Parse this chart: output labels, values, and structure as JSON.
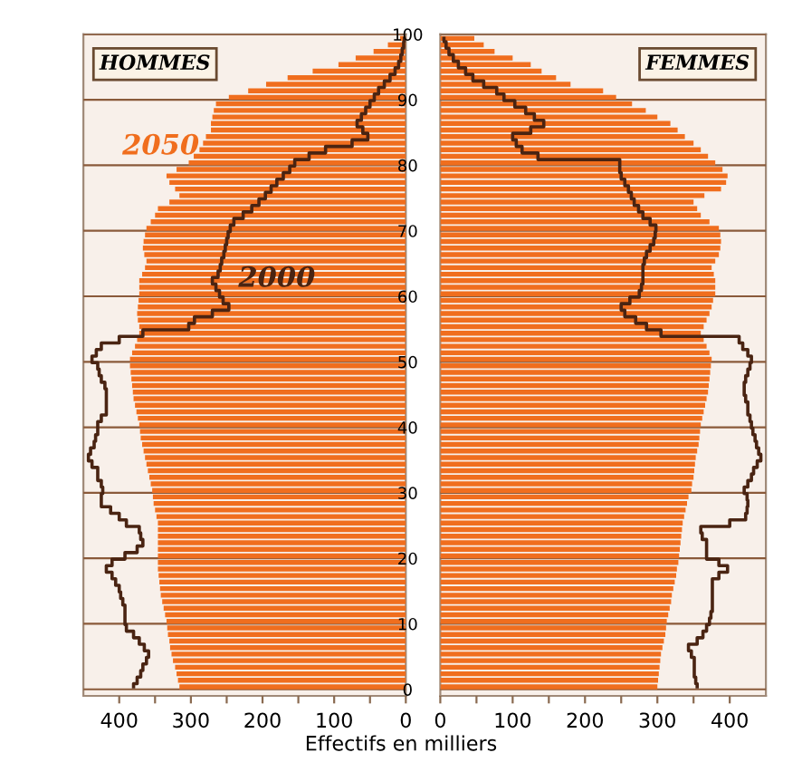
{
  "chart_data": [
    {
      "type": "bar",
      "orientation": "horizontal",
      "title": "HOMMES",
      "xlabel": "Effectifs en milliers",
      "tick_labels": "x",
      "grid": "y",
      "legend": false,
      "x": [
        0,
        1,
        2,
        3,
        4,
        5,
        6,
        7,
        8,
        9,
        10,
        11,
        12,
        13,
        14,
        15,
        16,
        17,
        18,
        19,
        20,
        21,
        22,
        23,
        24,
        25,
        26,
        27,
        28,
        29,
        30,
        31,
        32,
        33,
        34,
        35,
        36,
        37,
        38,
        39,
        40,
        41,
        42,
        43,
        44,
        45,
        46,
        47,
        48,
        49,
        50,
        51,
        52,
        53,
        54,
        55,
        56,
        57,
        58,
        59,
        60,
        61,
        62,
        63,
        64,
        65,
        66,
        67,
        68,
        69,
        70,
        71,
        72,
        73,
        74,
        75,
        76,
        77,
        78,
        79,
        80,
        81,
        82,
        83,
        84,
        85,
        86,
        87,
        88,
        89,
        90,
        91,
        92,
        93,
        94,
        95,
        96,
        97,
        98,
        99
      ],
      "xlim": [
        450,
        0
      ],
      "xticks": [
        400,
        {
          "value": 350,
          "label": null
        },
        300,
        {
          "value": 250,
          "label": null
        },
        200,
        {
          "value": 150,
          "label": null
        },
        100,
        {
          "value": 50,
          "label": null
        },
        0
      ],
      "ylim": [
        -1,
        100
      ],
      "yticks": [
        0,
        10,
        20,
        30,
        40,
        50,
        60,
        70,
        80,
        90,
        100
      ],
      "series": [
        {
          "name": "2000",
          "type": "step",
          "color": "#4a2412",
          "values": [
            380,
            375,
            370,
            367,
            362,
            359,
            365,
            372,
            380,
            390,
            392,
            392,
            392,
            395,
            398,
            400,
            405,
            410,
            418,
            410,
            392,
            375,
            367,
            370,
            372,
            390,
            400,
            412,
            425,
            425,
            423,
            425,
            430,
            430,
            438,
            443,
            440,
            435,
            433,
            430,
            430,
            425,
            418,
            418,
            418,
            418,
            420,
            425,
            428,
            430,
            438,
            432,
            425,
            400,
            367,
            303,
            295,
            270,
            247,
            255,
            260,
            265,
            270,
            262,
            259,
            257,
            254,
            252,
            250,
            248,
            245,
            240,
            227,
            215,
            205,
            196,
            188,
            180,
            171,
            162,
            155,
            135,
            112,
            75,
            53,
            60,
            68,
            62,
            56,
            50,
            44,
            38,
            30,
            22,
            15,
            10,
            7,
            5,
            3,
            2
          ]
        },
        {
          "name": "2050",
          "color": "#f06e1e",
          "values": [
            316,
            318,
            320,
            322,
            325,
            327,
            329,
            330,
            332,
            333,
            334,
            336,
            338,
            340,
            342,
            343,
            344,
            345,
            346,
            346,
            346,
            346,
            346,
            346,
            346,
            346,
            348,
            350,
            352,
            353,
            354,
            356,
            358,
            360,
            362,
            364,
            366,
            368,
            370,
            371,
            372,
            374,
            376,
            378,
            380,
            381,
            382,
            383,
            384,
            385,
            385,
            382,
            378,
            375,
            372,
            372,
            374,
            375,
            374,
            373,
            372,
            372,
            372,
            368,
            364,
            362,
            365,
            367,
            366,
            364,
            362,
            356,
            350,
            346,
            330,
            316,
            322,
            330,
            334,
            320,
            303,
            296,
            288,
            283,
            279,
            272,
            272,
            270,
            268,
            265,
            247,
            220,
            195,
            165,
            130,
            94,
            70,
            45,
            25,
            8
          ]
        }
      ]
    },
    {
      "type": "bar",
      "orientation": "horizontal",
      "title": "FEMMES",
      "grid": "y",
      "legend": false,
      "x": [
        0,
        1,
        2,
        3,
        4,
        5,
        6,
        7,
        8,
        9,
        10,
        11,
        12,
        13,
        14,
        15,
        16,
        17,
        18,
        19,
        20,
        21,
        22,
        23,
        24,
        25,
        26,
        27,
        28,
        29,
        30,
        31,
        32,
        33,
        34,
        35,
        36,
        37,
        38,
        39,
        40,
        41,
        42,
        43,
        44,
        45,
        46,
        47,
        48,
        49,
        50,
        51,
        52,
        53,
        54,
        55,
        56,
        57,
        58,
        59,
        60,
        61,
        62,
        63,
        64,
        65,
        66,
        67,
        68,
        69,
        70,
        71,
        72,
        73,
        74,
        75,
        76,
        77,
        78,
        79,
        80,
        81,
        82,
        83,
        84,
        85,
        86,
        87,
        88,
        89,
        90,
        91,
        92,
        93,
        94,
        95,
        96,
        97,
        98,
        99
      ],
      "xlim": [
        0,
        450
      ],
      "xticks": [
        0,
        {
          "value": 50,
          "label": null
        },
        100,
        {
          "value": 150,
          "label": null
        },
        200,
        {
          "value": 250,
          "label": null
        },
        300,
        {
          "value": 350,
          "label": null
        },
        400
      ],
      "ylim": [
        -1,
        100
      ],
      "yticks": [
        0,
        10,
        20,
        30,
        40,
        50,
        60,
        70,
        80,
        90,
        100
      ],
      "series": [
        {
          "type": "step",
          "color": "#4a2412",
          "values": [
            355,
            353,
            351,
            351,
            351,
            347,
            343,
            355,
            363,
            368,
            372,
            374,
            376,
            376,
            376,
            376,
            376,
            385,
            397,
            385,
            368,
            368,
            368,
            362,
            360,
            400,
            422,
            424,
            425,
            424,
            420,
            425,
            430,
            433,
            438,
            443,
            440,
            437,
            435,
            432,
            430,
            428,
            425,
            425,
            422,
            420,
            420,
            422,
            425,
            428,
            430,
            425,
            418,
            413,
            305,
            285,
            270,
            255,
            250,
            262,
            275,
            278,
            280,
            280,
            280,
            282,
            285,
            290,
            295,
            297,
            298,
            290,
            280,
            274,
            268,
            264,
            260,
            255,
            250,
            248,
            248,
            135,
            113,
            105,
            100,
            125,
            143,
            130,
            118,
            103,
            88,
            78,
            60,
            45,
            35,
            25,
            18,
            12,
            8,
            5
          ]
        },
        {
          "color": "#f06e1e",
          "values": [
            300,
            301,
            302,
            303,
            304,
            305,
            307,
            309,
            311,
            312,
            313,
            315,
            317,
            319,
            320,
            322,
            324,
            326,
            327,
            329,
            330,
            331,
            332,
            333,
            334,
            335,
            337,
            339,
            341,
            343,
            347,
            348,
            350,
            351,
            352,
            353,
            355,
            357,
            358,
            359,
            360,
            362,
            364,
            366,
            368,
            370,
            371,
            372,
            373,
            374,
            375,
            372,
            368,
            364,
            360,
            364,
            368,
            372,
            375,
            377,
            380,
            380,
            380,
            378,
            375,
            380,
            385,
            387,
            388,
            387,
            385,
            372,
            360,
            355,
            350,
            365,
            388,
            395,
            397,
            390,
            380,
            370,
            360,
            350,
            338,
            328,
            318,
            300,
            284,
            265,
            243,
            225,
            180,
            160,
            140,
            125,
            100,
            75,
            60,
            47
          ]
        }
      ]
    }
  ]
}
